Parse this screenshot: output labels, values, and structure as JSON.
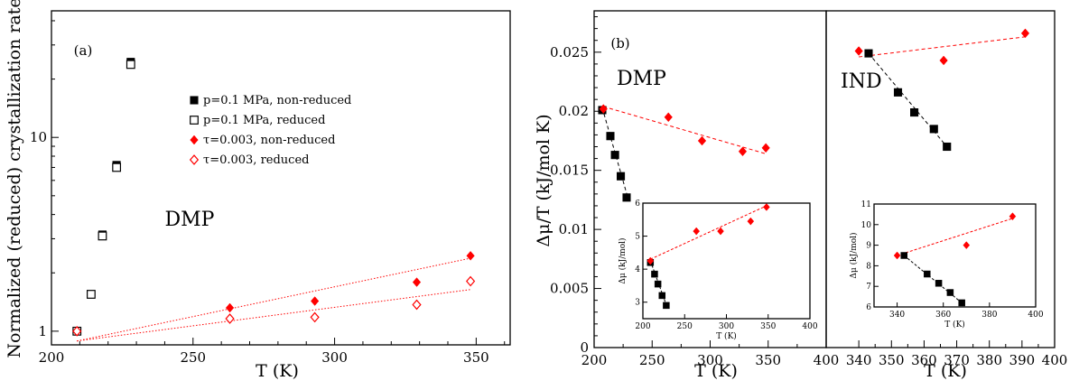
{
  "chart_data": [
    {
      "id": "a",
      "type": "scatter",
      "panel_label": "(a)",
      "annotation": "DMP",
      "xlabel": "T (K)",
      "ylabel": "Normalized (reduced) crystallization rate",
      "xlim": [
        200,
        362
      ],
      "ylim": [
        0.85,
        45
      ],
      "yscale": "log",
      "xticks": [
        200,
        250,
        300,
        350
      ],
      "yticks": [
        1,
        10
      ],
      "grid": false,
      "legend_position": "center-right",
      "series": [
        {
          "name": "p=0.1 MPa, non-reduced",
          "marker": "square",
          "filled": true,
          "color": "#000000",
          "x": [
            209,
            214,
            218,
            223,
            228
          ],
          "y": [
            1.0,
            1.55,
            3.15,
            7.2,
            24.5
          ]
        },
        {
          "name": "p=0.1 MPa, reduced",
          "marker": "square",
          "filled": false,
          "color": "#000000",
          "x": [
            209,
            214,
            218,
            223,
            228
          ],
          "y": [
            1.0,
            1.55,
            3.1,
            7.0,
            23.8
          ]
        },
        {
          "name": "τ=0.003, non-reduced",
          "marker": "diamond",
          "filled": true,
          "color": "#ff0000",
          "x": [
            209,
            263,
            293,
            329,
            348
          ],
          "y": [
            1.0,
            1.32,
            1.43,
            1.79,
            2.45
          ]
        },
        {
          "name": "τ=0.003, reduced",
          "marker": "diamond",
          "filled": false,
          "color": "#ff0000",
          "x": [
            209,
            263,
            293,
            329,
            348
          ],
          "y": [
            1.0,
            1.16,
            1.18,
            1.37,
            1.81
          ]
        }
      ],
      "fit_lines": [
        {
          "color": "#ff0000",
          "x": [
            209,
            348
          ],
          "y": [
            0.89,
            2.38
          ]
        },
        {
          "color": "#ff0000",
          "x": [
            209,
            348
          ],
          "y": [
            0.89,
            1.64
          ]
        }
      ]
    },
    {
      "id": "b",
      "type": "scatter",
      "panel_label": "(b)",
      "ylabel": "Δμ/T  (kJ/mol K)",
      "xlabel": "T (K)",
      "ylim": [
        0,
        0.0285
      ],
      "yticks": [
        0,
        0.005,
        0.01,
        0.015,
        0.02,
        0.025
      ],
      "ytick_labels": [
        "0",
        "0.005",
        "0.01",
        "0.015",
        "0.02",
        "0.025"
      ],
      "grid": false,
      "subpanels": [
        {
          "annotation": "DMP",
          "xlim": [
            200,
            400
          ],
          "xticks": [
            200,
            250,
            300,
            350,
            400
          ],
          "series": [
            {
              "marker": "square",
              "color": "#000000",
              "x": [
                207,
                214,
                218,
                223,
                228
              ],
              "y": [
                0.0201,
                0.0179,
                0.0163,
                0.0145,
                0.0127
              ]
            },
            {
              "marker": "diamond",
              "color": "#ff0000",
              "x": [
                208,
                264,
                293,
                328,
                348
              ],
              "y": [
                0.0202,
                0.0195,
                0.0175,
                0.0166,
                0.0169
              ]
            }
          ],
          "fit_lines": [
            {
              "color": "#000000",
              "x": [
                207,
                229
              ],
              "y": [
                0.0203,
                0.0127
              ]
            },
            {
              "color": "#ff0000",
              "x": [
                208,
                348
              ],
              "y": [
                0.0204,
                0.0164
              ]
            }
          ],
          "inset": {
            "xlabel": "T  (K)",
            "ylabel": "Δμ (kJ/mol)",
            "xlim": [
              200,
              400
            ],
            "ylim": [
              2.5,
              6
            ],
            "xticks": [
              200,
              250,
              300,
              350,
              400
            ],
            "yticks": [
              3,
              4,
              5,
              6
            ],
            "series": [
              {
                "marker": "square",
                "color": "#000000",
                "x": [
                  209,
                  214,
                  218,
                  223,
                  228
                ],
                "y": [
                  4.2,
                  3.85,
                  3.55,
                  3.2,
                  2.9
                ]
              },
              {
                "marker": "diamond",
                "color": "#ff0000",
                "x": [
                  209,
                  264,
                  293,
                  329,
                  348
                ],
                "y": [
                  4.25,
                  5.15,
                  5.15,
                  5.45,
                  5.88
                ]
              }
            ],
            "fit_lines": [
              {
                "color": "#000000",
                "x": [
                  209,
                  229
                ],
                "y": [
                  4.25,
                  2.85
                ]
              },
              {
                "color": "#ff0000",
                "x": [
                  209,
                  348
                ],
                "y": [
                  4.3,
                  5.92
                ]
              }
            ]
          }
        },
        {
          "annotation": "IND",
          "xlim": [
            330,
            400
          ],
          "xticks": [
            340,
            350,
            360,
            370,
            380,
            390,
            400
          ],
          "series": [
            {
              "marker": "square",
              "color": "#000000",
              "x": [
                343,
                352,
                357,
                363,
                367
              ],
              "y": [
                0.0249,
                0.0216,
                0.0199,
                0.0185,
                0.017
              ]
            },
            {
              "marker": "diamond",
              "color": "#ff0000",
              "x": [
                340,
                366,
                391
              ],
              "y": [
                0.0251,
                0.0243,
                0.0266
              ]
            }
          ],
          "fit_lines": [
            {
              "color": "#000000",
              "x": [
                343,
                367
              ],
              "y": [
                0.0249,
                0.017
              ]
            },
            {
              "color": "#ff0000",
              "x": [
                340,
                391
              ],
              "y": [
                0.0246,
                0.0263
              ]
            }
          ],
          "inset": {
            "xlabel": "T  (K)",
            "ylabel": "Δμ (kJ/mol)",
            "xlim": [
              330,
              400
            ],
            "ylim": [
              6,
              11
            ],
            "xticks": [
              340,
              360,
              380,
              400
            ],
            "yticks": [
              6,
              7,
              8,
              9,
              10,
              11
            ],
            "series": [
              {
                "marker": "square",
                "color": "#000000",
                "x": [
                  343,
                  353,
                  358,
                  363,
                  368
                ],
                "y": [
                  8.5,
                  7.6,
                  7.15,
                  6.7,
                  6.2
                ]
              },
              {
                "marker": "diamond",
                "color": "#ff0000",
                "x": [
                  340,
                  370,
                  390
                ],
                "y": [
                  8.5,
                  9.0,
                  10.4
                ]
              }
            ],
            "fit_lines": [
              {
                "color": "#000000",
                "x": [
                  343,
                  368
                ],
                "y": [
                  8.5,
                  6.2
                ]
              },
              {
                "color": "#ff0000",
                "x": [
                  340,
                  390
                ],
                "y": [
                  8.5,
                  10.3
                ]
              }
            ]
          }
        }
      ]
    }
  ]
}
